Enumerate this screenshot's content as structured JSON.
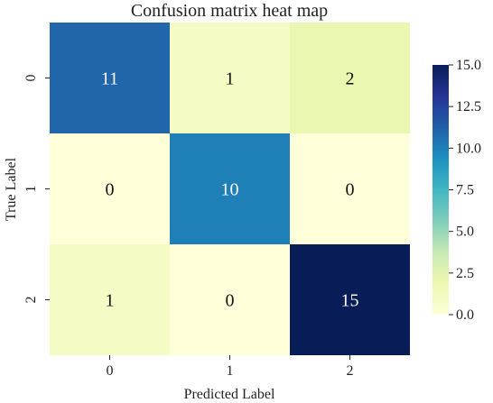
{
  "chart_data": {
    "type": "heatmap",
    "title": "Confusion matrix heat map",
    "xlabel": "Predicted Label",
    "ylabel": "True Label",
    "x_categories": [
      "0",
      "1",
      "2"
    ],
    "y_categories": [
      "0",
      "1",
      "2"
    ],
    "values": [
      [
        11,
        1,
        2
      ],
      [
        0,
        10,
        0
      ],
      [
        1,
        0,
        15
      ]
    ],
    "annotations": [
      [
        "11",
        "1",
        "2"
      ],
      [
        "0",
        "10",
        "0"
      ],
      [
        "1",
        "0",
        "15"
      ]
    ],
    "colorbar": {
      "min": 0.0,
      "max": 15.0,
      "ticks": [
        0.0,
        2.5,
        5.0,
        7.5,
        10.0,
        12.5,
        15.0
      ],
      "tick_labels": [
        "0.0",
        "2.5",
        "5.0",
        "7.5",
        "10.0",
        "12.5",
        "15.0"
      ]
    },
    "colormap": "YlGnBu",
    "colormap_stops": [
      "#ffffd9",
      "#edf8b1",
      "#c7e9b4",
      "#7fcdbb",
      "#41b6c4",
      "#1d91c0",
      "#225ea8",
      "#253494",
      "#081d58"
    ],
    "annot_text_colors": {
      "light": "#ffffff",
      "dark": "#111111"
    }
  }
}
